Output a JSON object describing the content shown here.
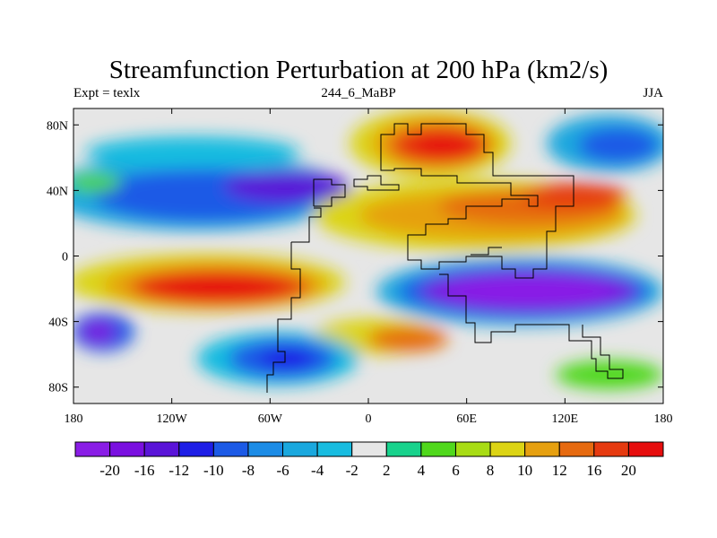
{
  "plot": {
    "title": "Streamfunction Perturbation at 200 hPa (km2/s)",
    "left_string": "Expt = texlx",
    "center_string": "244_6_MaBP",
    "right_string": "JJA"
  },
  "axes": {
    "x_ticks": [
      "180",
      "120W",
      "60W",
      "0",
      "60E",
      "120E",
      "180"
    ],
    "x_tick_values": [
      -180,
      -120,
      -60,
      0,
      60,
      120,
      180
    ],
    "y_ticks": [
      "80N",
      "40N",
      "0",
      "40S",
      "80S"
    ],
    "y_tick_values": [
      80,
      40,
      0,
      -40,
      -80
    ],
    "lon_range": [
      -180,
      180
    ],
    "lat_range": [
      -90,
      90
    ]
  },
  "colorbar": {
    "labels": [
      "-20",
      "-16",
      "-12",
      "-10",
      "-8",
      "-6",
      "-4",
      "-2",
      "2",
      "4",
      "6",
      "8",
      "10",
      "12",
      "16",
      "20"
    ],
    "colors": [
      "#8a1de6",
      "#7a10e0",
      "#5a14d8",
      "#1e1ee6",
      "#1c5ae6",
      "#1c8ce6",
      "#1aa8de",
      "#18bce0",
      "#e6e6e6",
      "#18d28c",
      "#50d81c",
      "#a8dc14",
      "#dcd414",
      "#e6a010",
      "#e66a10",
      "#e63a10",
      "#e60e0e"
    ]
  }
}
